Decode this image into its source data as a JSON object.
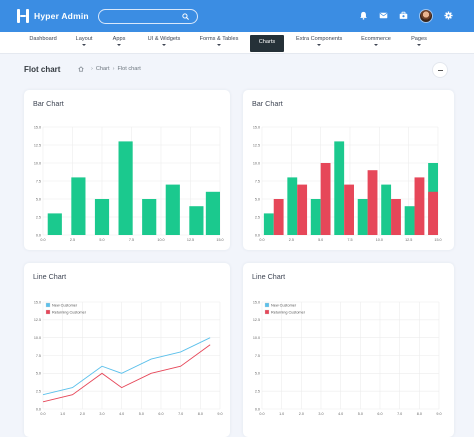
{
  "app": {
    "name": "Hyper Admin"
  },
  "search": {
    "placeholder": "",
    "value": ""
  },
  "topbar": {
    "icons": [
      "bell-icon",
      "mail-icon",
      "briefcase-icon",
      "gear-icon"
    ]
  },
  "nav": {
    "items": [
      {
        "label": "Dashboard",
        "caret": false
      },
      {
        "label": "Layout",
        "caret": true
      },
      {
        "label": "Apps",
        "caret": true
      },
      {
        "label": "UI & Widgets",
        "caret": true
      },
      {
        "label": "Forms & Tables",
        "caret": true
      },
      {
        "label": "Charts",
        "caret": false,
        "active": true
      },
      {
        "label": "Extra Components",
        "caret": true
      },
      {
        "label": "Ecommerce",
        "caret": true
      },
      {
        "label": "Pages",
        "caret": true
      }
    ]
  },
  "page": {
    "title": "Flot chart",
    "breadcrumb": [
      "Chart",
      "Flot chart"
    ]
  },
  "colors": {
    "accent": "#3b8de3",
    "green": "#1bc98e",
    "red": "#e64759",
    "line_blue": "#5bc0eb"
  },
  "cards": {
    "bar1": {
      "title": "Bar Chart"
    },
    "bar2": {
      "title": "Bar Chart"
    },
    "line1": {
      "title": "Line Chart"
    },
    "line2": {
      "title": "Line Chart"
    }
  },
  "chart_data": [
    {
      "type": "bar",
      "title": "Bar Chart",
      "xlim": [
        0,
        15
      ],
      "ylim": [
        0,
        15
      ],
      "xticks": [
        "0.0",
        "2.5",
        "5.0",
        "7.5",
        "10.0",
        "12.5",
        "15.0"
      ],
      "yticks": [
        "0.0",
        "2.5",
        "5.0",
        "7.5",
        "10.0",
        "12.5",
        "15.0"
      ],
      "x": [
        1,
        3,
        5,
        7,
        9,
        11,
        13,
        15
      ],
      "series": [
        {
          "values": [
            3,
            8,
            5,
            13,
            5,
            7,
            4,
            6
          ],
          "color": "#1bc98e"
        }
      ],
      "grid": true
    },
    {
      "type": "bar",
      "title": "Bar Chart",
      "xlim": [
        0,
        15
      ],
      "ylim": [
        0,
        15
      ],
      "xticks": [
        "0.0",
        "2.5",
        "5.0",
        "7.5",
        "10.0",
        "12.5",
        "15.0"
      ],
      "yticks": [
        "0.0",
        "2.5",
        "5.0",
        "7.5",
        "10.0",
        "12.5",
        "15.0"
      ],
      "x": [
        1,
        3,
        5,
        7,
        9,
        11,
        13,
        15
      ],
      "series": [
        {
          "values": [
            3,
            8,
            5,
            13,
            5,
            7,
            4,
            10
          ],
          "color": "#1bc98e"
        },
        {
          "values": [
            5,
            7,
            10,
            7,
            9,
            5,
            8,
            6
          ],
          "color": "#e64759"
        }
      ],
      "grid": true
    },
    {
      "type": "line",
      "title": "Line Chart",
      "xlim": [
        0,
        9
      ],
      "ylim": [
        0,
        15
      ],
      "xticks": [
        "0.0",
        "1.0",
        "2.0",
        "3.0",
        "4.0",
        "5.0",
        "6.0",
        "7.0",
        "8.0",
        "9.0"
      ],
      "yticks": [
        "0.0",
        "2.5",
        "5.0",
        "7.5",
        "10.0",
        "12.5",
        "15.0"
      ],
      "x": [
        0,
        1.5,
        3,
        4,
        5.5,
        7,
        8.5
      ],
      "series": [
        {
          "name": "New Customer",
          "values": [
            2,
            3,
            6,
            5,
            7,
            8,
            10
          ],
          "color": "#5bc0eb"
        },
        {
          "name": "Returning Customer",
          "values": [
            1,
            2,
            5,
            3,
            5,
            6,
            9
          ],
          "color": "#e64759"
        }
      ],
      "legend": "top-left",
      "grid": true
    },
    {
      "type": "line",
      "title": "Line Chart",
      "xlim": [
        0,
        9
      ],
      "ylim": [
        0,
        15
      ],
      "xticks": [
        "0.0",
        "1.0",
        "2.0",
        "3.0",
        "4.0",
        "5.0",
        "6.0",
        "7.0",
        "8.0",
        "9.0"
      ],
      "yticks": [
        "0.0",
        "2.5",
        "5.0",
        "7.5",
        "10.0",
        "12.5",
        "15.0"
      ],
      "x": [],
      "series": [
        {
          "name": "New Customer",
          "values": [],
          "color": "#5bc0eb"
        },
        {
          "name": "Returning Customer",
          "values": [],
          "color": "#e64759"
        }
      ],
      "legend": "top-left",
      "grid": true
    }
  ]
}
